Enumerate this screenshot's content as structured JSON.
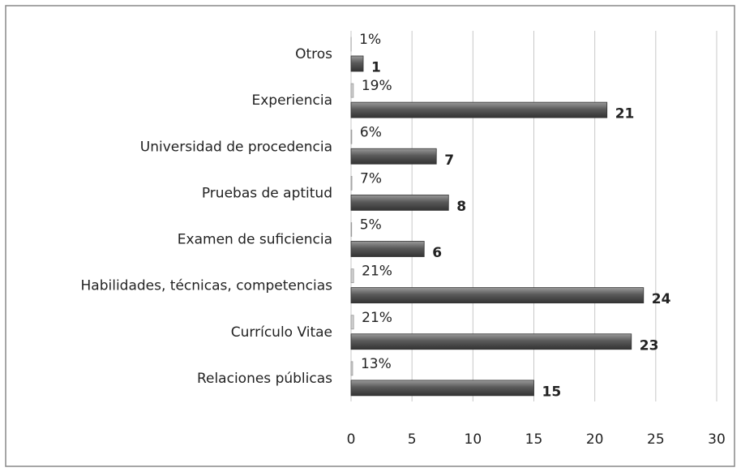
{
  "chart_data": {
    "type": "bar",
    "orientation": "horizontal",
    "categories": [
      "Otros",
      "Experiencia",
      "Universidad de procedencia",
      "Pruebas de aptitud",
      "Examen de suficiencia",
      "Habilidades, técnicas, competencias",
      "Currículo Vitae",
      "Relaciones públicas"
    ],
    "series": [
      {
        "color": "#d0d0d0",
        "values": [
          0.01,
          0.19,
          0.06,
          0.07,
          0.05,
          0.21,
          0.21,
          0.13
        ],
        "value_labels": [
          "1%",
          "19%",
          "6%",
          "7%",
          "5%",
          "21%",
          "21%",
          "13%"
        ]
      },
      {
        "color": "#555555",
        "values": [
          1,
          21,
          7,
          8,
          6,
          24,
          23,
          15
        ]
      }
    ],
    "xlim": [
      0,
      30
    ],
    "xticks": [
      0,
      5,
      10,
      15,
      20,
      25,
      30
    ],
    "grid": true
  }
}
